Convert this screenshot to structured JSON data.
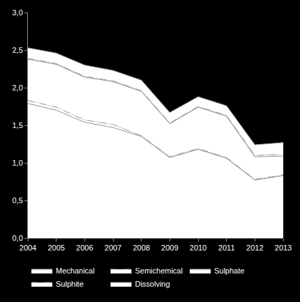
{
  "chart_data": {
    "type": "area",
    "stacked": true,
    "x": [
      2004,
      2005,
      2006,
      2007,
      2008,
      2009,
      2010,
      2011,
      2012,
      2013
    ],
    "xlim": [
      2004,
      2013
    ],
    "xticks": [
      2004,
      2005,
      2006,
      2007,
      2008,
      2009,
      2010,
      2011,
      2012,
      2013
    ],
    "ylim": [
      0,
      3
    ],
    "yticks": [
      {
        "value": 0,
        "label": "0,0"
      },
      {
        "value": 0.5,
        "label": "0,5"
      },
      {
        "value": 1,
        "label": "1,0"
      },
      {
        "value": 1.5,
        "label": "1,5"
      },
      {
        "value": 2,
        "label": "2,0"
      },
      {
        "value": 2.5,
        "label": "2,5"
      },
      {
        "value": 3,
        "label": "3,0"
      }
    ],
    "grid": false,
    "legend": "bottom",
    "series": [
      {
        "name": "Mechanical",
        "color": "#ffffff",
        "line_style": "solid",
        "values": [
          1.79,
          1.7,
          1.54,
          1.47,
          1.35,
          1.07,
          1.18,
          1.06,
          0.77,
          0.83
        ]
      },
      {
        "name": "Semichemical",
        "color": "#ffffff",
        "line_style": "dashed",
        "values": [
          0.04,
          0.04,
          0.03,
          0.04,
          0.01,
          0.01,
          0.01,
          0.01,
          0.01,
          0.01
        ]
      },
      {
        "name": "Sulphate",
        "color": "#ffffff",
        "line_style": "solid",
        "values": [
          0.55,
          0.57,
          0.57,
          0.57,
          0.59,
          0.44,
          0.55,
          0.55,
          0.3,
          0.25
        ]
      },
      {
        "name": "Sulphite",
        "color": "#ffffff",
        "line_style": "dashed",
        "values": [
          0.01,
          0.01,
          0.01,
          0.01,
          0.01,
          0.01,
          0.01,
          0.01,
          0.02,
          0.02
        ]
      },
      {
        "name": "Dissolving",
        "color": "#ffffff",
        "line_style": "solid",
        "values": [
          0.14,
          0.14,
          0.15,
          0.14,
          0.14,
          0.14,
          0.13,
          0.13,
          0.14,
          0.16
        ]
      }
    ]
  }
}
